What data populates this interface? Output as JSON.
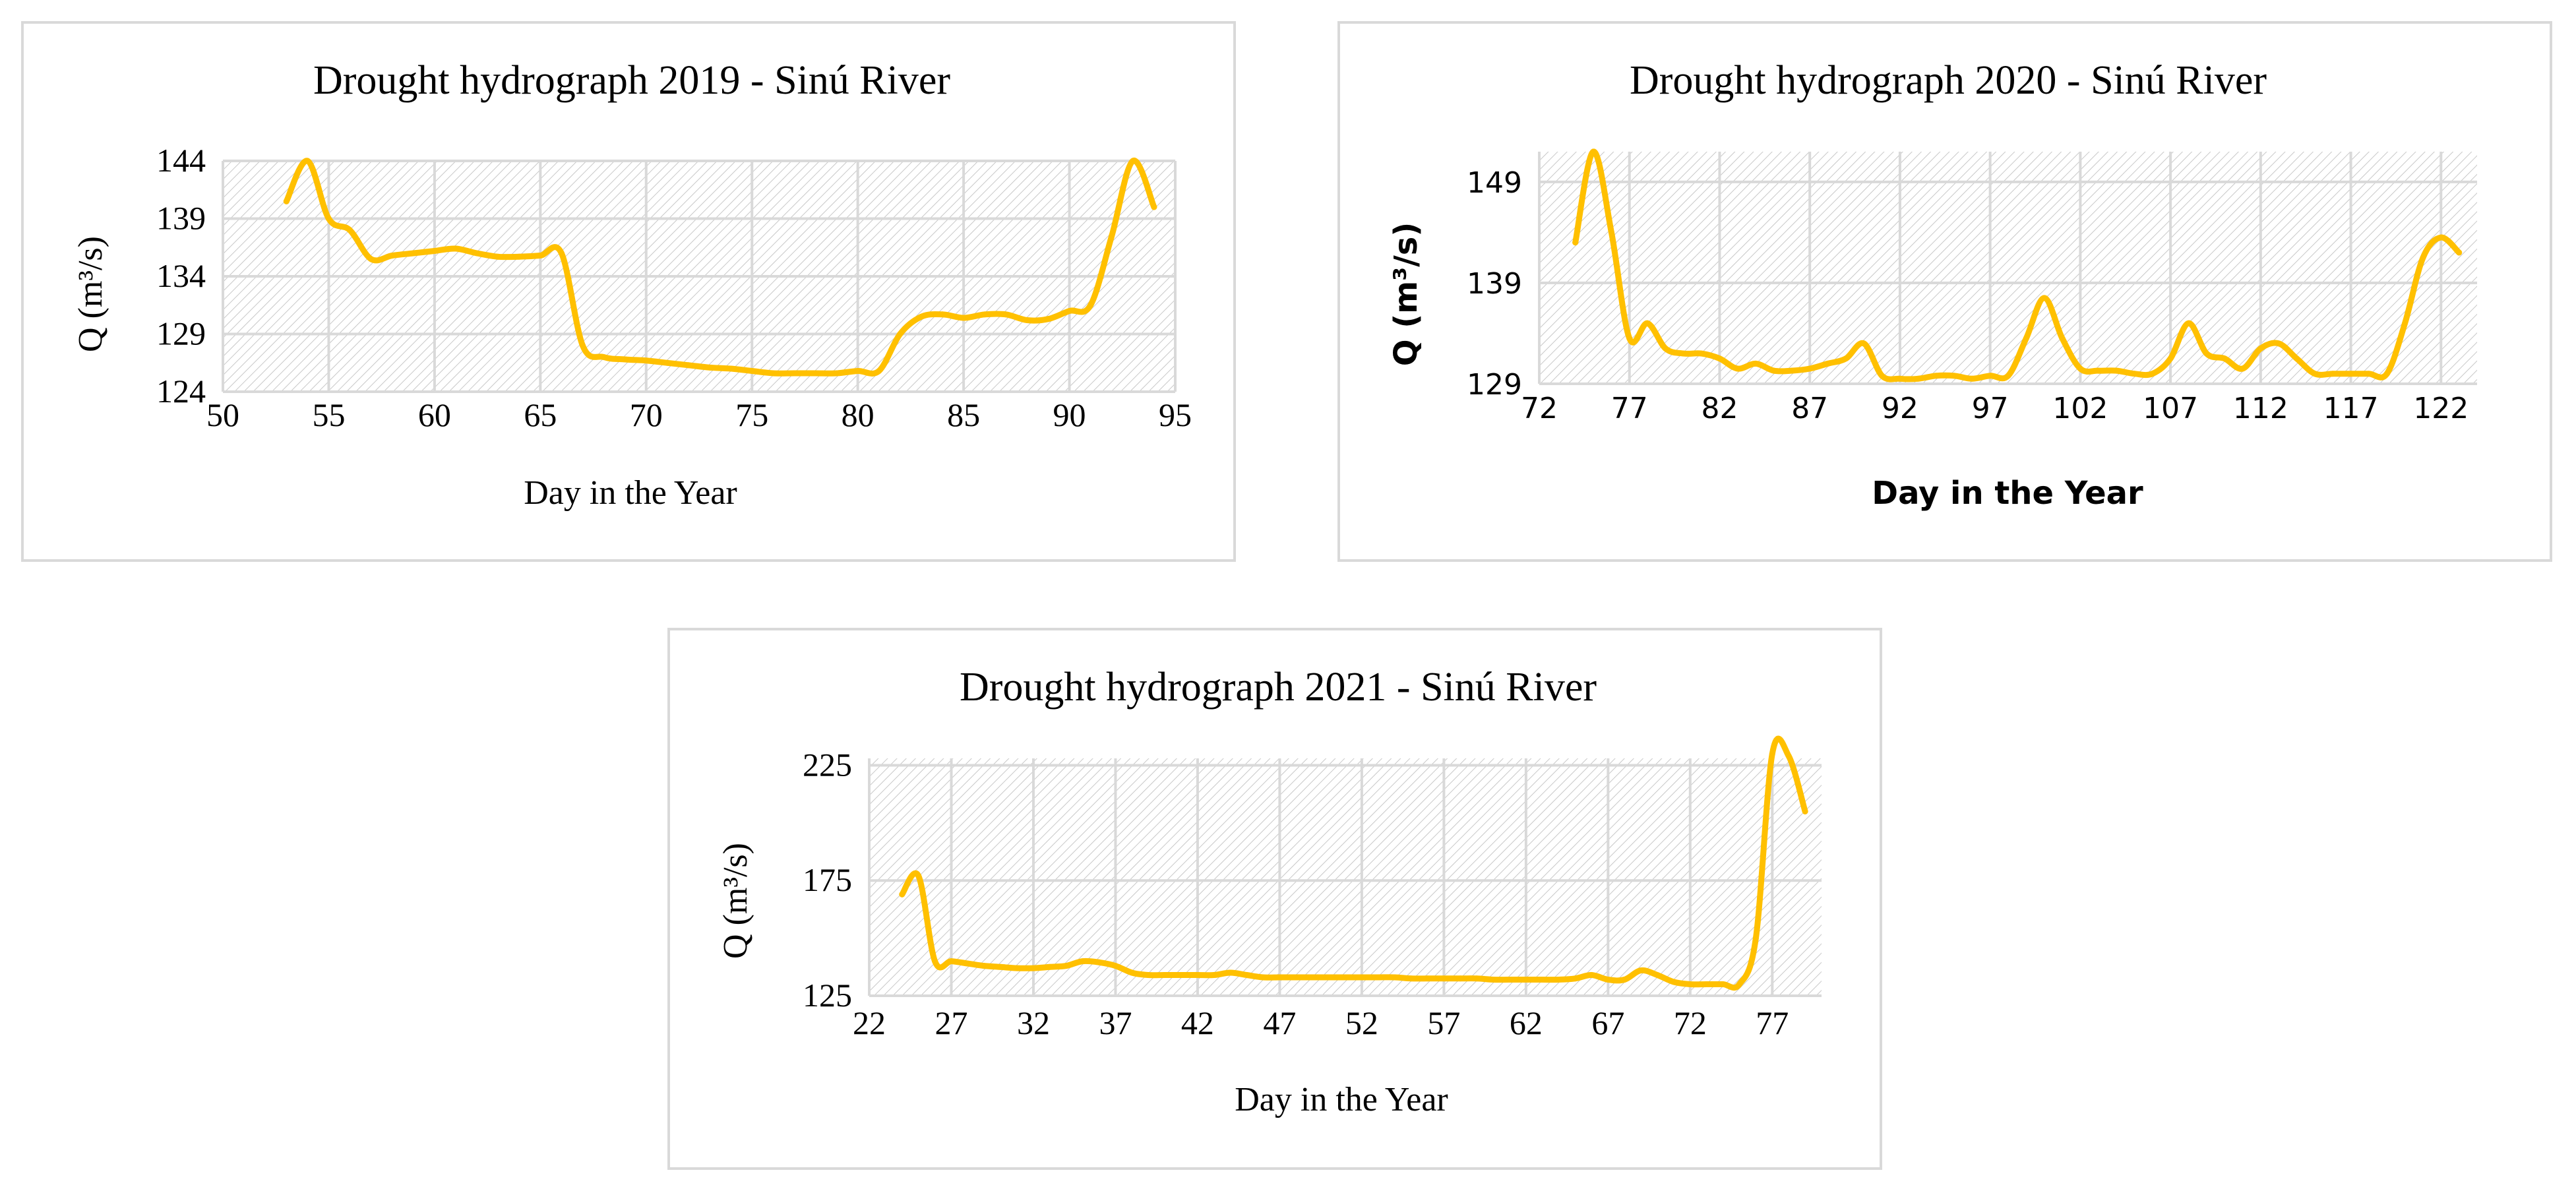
{
  "chart_data": [
    {
      "type": "line",
      "title": "Drought hydrograph 2019 - Sinú River",
      "xlabel": "Day in the Year",
      "ylabel": "Q (m³/s)",
      "xlim": [
        50,
        95
      ],
      "ylim": [
        124,
        144
      ],
      "xticks": [
        "50",
        "55",
        "60",
        "65",
        "70",
        "75",
        "80",
        "85",
        "90",
        "95"
      ],
      "yticks": [
        "124",
        "129",
        "134",
        "139",
        "144"
      ],
      "grid": true,
      "color": "#FFC000",
      "series": [
        {
          "x": [
            53,
            54,
            55,
            56,
            57,
            58,
            59,
            60,
            61,
            62,
            63,
            64,
            65,
            66,
            67,
            68,
            69,
            70,
            71,
            72,
            73,
            74,
            75,
            76,
            77,
            78,
            79,
            80,
            81,
            82,
            83,
            84,
            85,
            86,
            87,
            88,
            89,
            90,
            91,
            92,
            93,
            94
          ],
          "values": [
            140.5,
            144.0,
            139.0,
            138.0,
            135.5,
            135.8,
            136.0,
            136.2,
            136.4,
            136.0,
            135.7,
            135.7,
            135.8,
            136.0,
            128.0,
            127.0,
            126.8,
            126.7,
            126.5,
            126.3,
            126.1,
            126.0,
            125.8,
            125.6,
            125.6,
            125.6,
            125.6,
            125.8,
            125.8,
            129.0,
            130.5,
            130.7,
            130.4,
            130.7,
            130.7,
            130.2,
            130.3,
            131.0,
            131.5,
            137.5,
            144.0,
            140.0
          ]
        }
      ]
    },
    {
      "type": "line",
      "title": "Drought hydrograph 2020 - Sinú River",
      "xlabel": "Day in the Year",
      "ylabel": "Q (m³/s)",
      "xlim": [
        72,
        124
      ],
      "ylim": [
        129,
        152
      ],
      "xticks": [
        "72",
        "77",
        "82",
        "87",
        "92",
        "97",
        "102",
        "107",
        "112",
        "117",
        "122"
      ],
      "yticks": [
        "129",
        "139",
        "149"
      ],
      "grid": true,
      "color": "#FFC000",
      "series": [
        {
          "x": [
            74,
            75,
            76,
            77,
            78,
            79,
            80,
            81,
            82,
            83,
            84,
            85,
            86,
            87,
            88,
            89,
            90,
            91,
            92,
            93,
            94,
            95,
            96,
            97,
            98,
            99,
            100,
            101,
            102,
            103,
            104,
            105,
            106,
            107,
            108,
            109,
            110,
            111,
            112,
            113,
            114,
            115,
            116,
            117,
            118,
            119,
            120,
            121,
            122,
            123
          ],
          "values": [
            143.0,
            152.0,
            144.0,
            133.5,
            135.0,
            132.5,
            132.0,
            132.0,
            131.5,
            130.5,
            131.0,
            130.3,
            130.3,
            130.5,
            131.0,
            131.5,
            133.0,
            129.8,
            129.5,
            129.5,
            129.8,
            129.8,
            129.5,
            129.8,
            129.8,
            133.5,
            137.5,
            133.5,
            130.5,
            130.3,
            130.3,
            130.0,
            130.0,
            131.5,
            135.0,
            132.0,
            131.5,
            130.5,
            132.5,
            133.0,
            131.5,
            130.0,
            130.0,
            130.0,
            130.0,
            130.0,
            135.0,
            141.5,
            143.5,
            142.0
          ]
        }
      ]
    },
    {
      "type": "line",
      "title": "Drought hydrograph 2021 - Sinú River",
      "xlabel": "Day in the Year",
      "ylabel": "Q (m³/s)",
      "xlim": [
        22,
        80
      ],
      "ylim": [
        125,
        228
      ],
      "xticks": [
        "22",
        "27",
        "32",
        "37",
        "42",
        "47",
        "52",
        "57",
        "62",
        "67",
        "72",
        "77"
      ],
      "yticks": [
        "125",
        "175",
        "225"
      ],
      "grid": true,
      "color": "#FFC000",
      "series": [
        {
          "x": [
            24,
            25,
            26,
            27,
            28,
            29,
            30,
            31,
            32,
            33,
            34,
            35,
            36,
            37,
            38,
            39,
            40,
            41,
            42,
            43,
            44,
            45,
            46,
            47,
            48,
            49,
            50,
            51,
            52,
            53,
            54,
            55,
            56,
            57,
            58,
            59,
            60,
            61,
            62,
            63,
            64,
            65,
            66,
            67,
            68,
            69,
            70,
            71,
            72,
            73,
            74,
            75,
            76,
            77,
            78,
            79
          ],
          "values": [
            169,
            177,
            140,
            140,
            139,
            138,
            137.5,
            137,
            137,
            137.5,
            138,
            140,
            139.5,
            138,
            135,
            134,
            134,
            134,
            134,
            134,
            135,
            134,
            133,
            133,
            133,
            133,
            133,
            133,
            133,
            133,
            133,
            132.5,
            132.5,
            132.5,
            132.5,
            132.5,
            132,
            132,
            132,
            132,
            132,
            132.5,
            134,
            132,
            132,
            136,
            134,
            131,
            130,
            130,
            130,
            130,
            150,
            230,
            229,
            205
          ]
        }
      ]
    }
  ]
}
